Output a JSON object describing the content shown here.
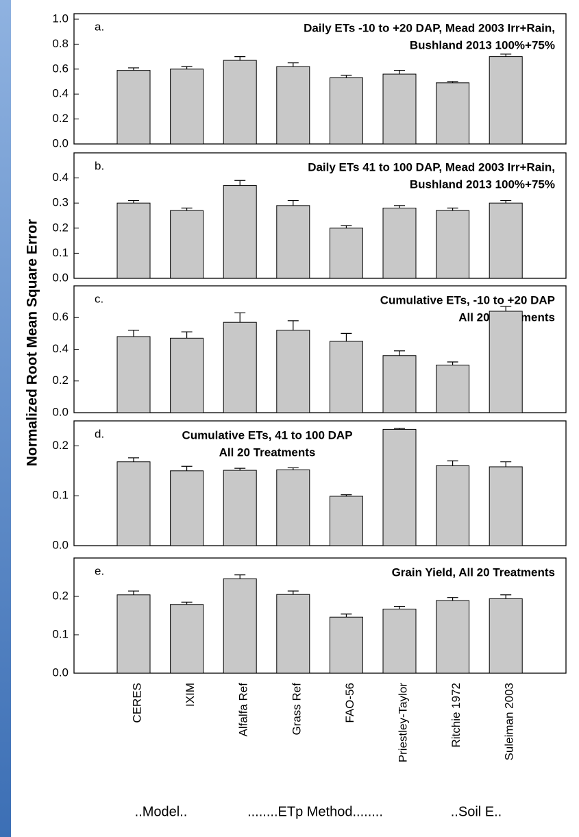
{
  "y_label": "Normalized Root Mean Square Error",
  "group_labels": [
    "..Model..",
    "........ETp Method........",
    "..Soil E.."
  ],
  "chart_data": [
    {
      "type": "bar",
      "panel": "a.",
      "title": [
        "Daily ETs -10 to +20 DAP, Mead 2003 Irr+Rain,",
        "Bushland 2013 100%+75%"
      ],
      "values": [
        0.59,
        0.6,
        0.67,
        0.62,
        0.53,
        0.56,
        0.49,
        0.7
      ],
      "errors": [
        0.02,
        0.02,
        0.03,
        0.03,
        0.02,
        0.03,
        0.01,
        0.02
      ],
      "color": "#c8c8c8",
      "ylim": [
        0,
        1.0
      ],
      "yticks": [
        {
          "value": 0,
          "label": "0.0"
        },
        0.2,
        0.4,
        0.6,
        0.8,
        {
          "value": 1,
          "label": "1.0"
        }
      ]
    },
    {
      "type": "bar",
      "panel": "b.",
      "title": [
        "Daily ETs 41 to 100 DAP, Mead 2003 Irr+Rain,",
        "Bushland 2013 100%+75%"
      ],
      "values": [
        0.3,
        0.27,
        0.37,
        0.29,
        0.2,
        0.28,
        0.27,
        0.3
      ],
      "errors": [
        0.01,
        0.01,
        0.02,
        0.02,
        0.01,
        0.01,
        0.01,
        0.01
      ],
      "color": "#c8c8c8",
      "ylim": [
        0,
        0.5
      ],
      "yticks": [
        {
          "value": 0,
          "label": "0.0"
        },
        0.1,
        0.2,
        0.3,
        0.4
      ]
    },
    {
      "type": "bar",
      "panel": "c.",
      "title": [
        "Cumulative ETs, -10 to +20 DAP",
        "All 20 Treatments"
      ],
      "values": [
        0.48,
        0.47,
        0.57,
        0.52,
        0.45,
        0.36,
        0.3,
        0.64
      ],
      "errors": [
        0.04,
        0.04,
        0.06,
        0.06,
        0.05,
        0.03,
        0.02,
        0.03
      ],
      "color": "#c8c8c8",
      "ylim": [
        0,
        0.8
      ],
      "yticks": [
        {
          "value": 0,
          "label": "0.0"
        },
        0.2,
        0.4,
        0.6
      ]
    },
    {
      "type": "bar",
      "panel": "d.",
      "title": [
        "Cumulative ETs, 41 to 100 DAP",
        "All 20 Treatments"
      ],
      "values": [
        0.168,
        0.15,
        0.151,
        0.152,
        0.099,
        0.233,
        0.16,
        0.158
      ],
      "errors": [
        0.008,
        0.009,
        0.004,
        0.004,
        0.003,
        0.002,
        0.01,
        0.01
      ],
      "color": "#c8c8c8",
      "ylim": [
        0,
        0.25
      ],
      "yticks": [
        {
          "value": 0,
          "label": "0.0"
        },
        0.1,
        0.2
      ]
    },
    {
      "type": "bar",
      "panel": "e.",
      "title": [
        "Grain Yield, All 20 Treatments"
      ],
      "categories": [
        "CERES",
        "IXIM",
        "Alfalfa Ref",
        "Grass Ref",
        "FAO-56",
        "Priestley-Taylor",
        "Ritchie 1972",
        "Suleiman 2003"
      ],
      "values": [
        0.204,
        0.179,
        0.246,
        0.205,
        0.146,
        0.167,
        0.189,
        0.194
      ],
      "errors": [
        0.01,
        0.006,
        0.01,
        0.009,
        0.008,
        0.007,
        0.008,
        0.01
      ],
      "color": "#c8c8c8",
      "ylim": [
        0,
        0.3
      ],
      "yticks": [
        {
          "value": 0,
          "label": "0.0"
        },
        0.1,
        0.2
      ]
    }
  ]
}
